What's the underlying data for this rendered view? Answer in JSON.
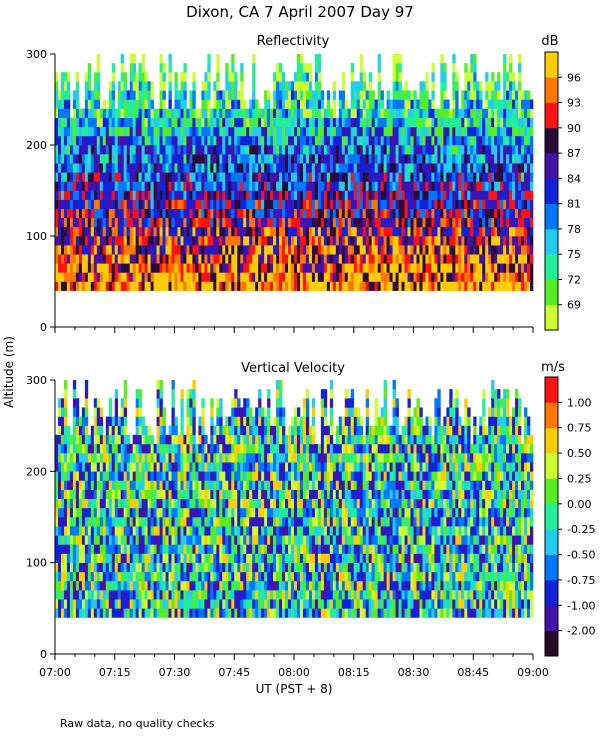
{
  "figure": {
    "title": "Dixon, CA   7 April 2007   Day   97",
    "y_axis_label": "Altitude  (m)",
    "x_axis_label": "UT   (PST + 8)",
    "footnote": "Raw data, no quality checks"
  },
  "chart_data": [
    {
      "type": "heatmap",
      "title": "Reflectivity",
      "xlabel": "UT   (PST + 8)",
      "ylabel": "Altitude  (m)",
      "xlim": [
        "07:00",
        "09:00"
      ],
      "ylim": [
        0,
        300
      ],
      "data_altitude_range": [
        40,
        300
      ],
      "y_ticks": [
        0,
        100,
        200,
        300
      ],
      "x_ticks": [
        "07:00",
        "07:15",
        "07:30",
        "07:45",
        "08:00",
        "08:15",
        "08:30",
        "08:45",
        "09:00"
      ],
      "colorbar": {
        "unit": "dB",
        "ticks": [
          69,
          72,
          75,
          78,
          81,
          84,
          87,
          90,
          93,
          96
        ],
        "colors": [
          "#ccff33",
          "#55ee22",
          "#22ee99",
          "#22ccee",
          "#0077ff",
          "#1122dd",
          "#4411aa",
          "#2a0a3a",
          "#ff1111",
          "#ff7700",
          "#ffcc00"
        ]
      },
      "x_tick_labels_shown": false
    },
    {
      "type": "heatmap",
      "title": "Vertical Velocity",
      "xlabel": "UT   (PST + 8)",
      "ylabel": "Altitude  (m)",
      "xlim": [
        "07:00",
        "09:00"
      ],
      "ylim": [
        0,
        300
      ],
      "data_altitude_range": [
        40,
        300
      ],
      "y_ticks": [
        0,
        100,
        200,
        300
      ],
      "x_ticks": [
        "07:00",
        "07:15",
        "07:30",
        "07:45",
        "08:00",
        "08:15",
        "08:30",
        "08:45",
        "09:00"
      ],
      "colorbar": {
        "unit": "m/s",
        "ticks": [
          "-2.00",
          "-1.00",
          "-0.75",
          "-0.50",
          "-0.25",
          "0.00",
          "0.25",
          "0.50",
          "0.75",
          "1.00"
        ],
        "colors": [
          "#2a0a2a",
          "#4411aa",
          "#1122dd",
          "#0077ff",
          "#22ccee",
          "#22ee99",
          "#55ee22",
          "#ccff33",
          "#ffcc00",
          "#ff7700",
          "#ff1111"
        ]
      },
      "x_tick_labels_shown": true
    }
  ]
}
